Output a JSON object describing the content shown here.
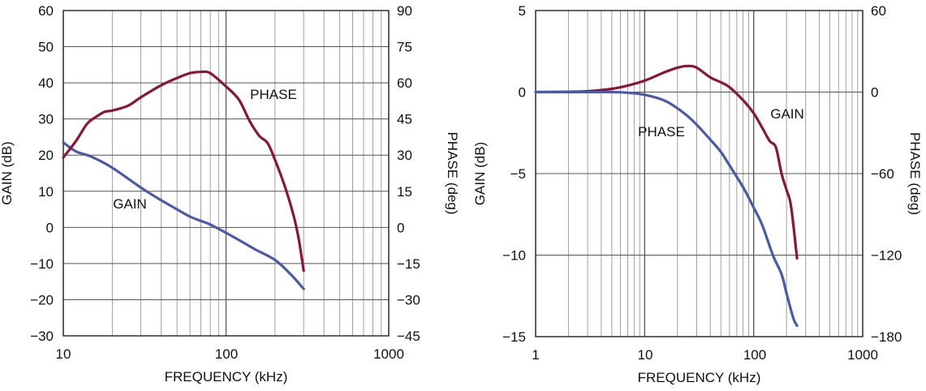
{
  "chart_data": [
    {
      "type": "line",
      "x_scale": "log",
      "xlim": [
        10,
        1000
      ],
      "x_ticks": [
        "10",
        "100",
        "1000"
      ],
      "xlabel": "FREQUENCY (kHz)",
      "ylabel_left": "GAIN (dB)",
      "ylim_left": [
        -30,
        60
      ],
      "y_ticks_left": [
        "−30",
        "−20",
        "−10",
        "0",
        "10",
        "20",
        "30",
        "40",
        "50",
        "60"
      ],
      "ylabel_right": "PHASE (deg)",
      "ylim_right": [
        -45,
        90
      ],
      "y_ticks_right": [
        "−45",
        "−30",
        "−15",
        "0",
        "15",
        "30",
        "45",
        "60",
        "75",
        "90"
      ],
      "grid": true,
      "series": [
        {
          "name": "GAIN",
          "axis": "left",
          "color": "#4a5aa8",
          "x": [
            10,
            12,
            15,
            20,
            30,
            40,
            50,
            60,
            70,
            80,
            100,
            120,
            150,
            200,
            250,
            300
          ],
          "y": [
            23.5,
            21,
            19.5,
            16.5,
            11,
            7.5,
            5,
            3,
            1.8,
            0.8,
            -1.5,
            -3.5,
            -6,
            -9,
            -13,
            -17
          ]
        },
        {
          "name": "PHASE",
          "axis": "right",
          "color": "#8b1538",
          "x": [
            10,
            12,
            14,
            16,
            18,
            20,
            25,
            30,
            40,
            50,
            60,
            70,
            80,
            100,
            120,
            140,
            160,
            180,
            200,
            230,
            260,
            280,
            300
          ],
          "y": [
            29,
            36,
            43,
            46,
            48,
            48.5,
            50.5,
            54,
            59,
            62,
            64,
            64.5,
            64,
            58.5,
            53,
            44,
            38,
            35,
            28,
            17,
            5,
            -5,
            -18
          ]
        }
      ],
      "annotations": [
        {
          "text": "PHASE"
        },
        {
          "text": "GAIN"
        }
      ]
    },
    {
      "type": "line",
      "x_scale": "log",
      "xlim": [
        1,
        1000
      ],
      "x_ticks": [
        "1",
        "10",
        "100",
        "1000"
      ],
      "xlabel": "FREQUENCY (kHz)",
      "ylabel_left": "GAIN (dB)",
      "ylim_left": [
        -15,
        5
      ],
      "y_ticks_left": [
        "−15",
        "−10",
        "−5",
        "0",
        "5"
      ],
      "ylabel_right": "PHASE (deg)",
      "ylim_right": [
        -180,
        60
      ],
      "y_ticks_right": [
        "−180",
        "−120",
        "−60",
        "0",
        "60"
      ],
      "grid": true,
      "series": [
        {
          "name": "GAIN",
          "axis": "left",
          "color": "#8b1538",
          "x": [
            1,
            2,
            3,
            5,
            7,
            10,
            15,
            20,
            25,
            30,
            40,
            50,
            60,
            80,
            100,
            120,
            140,
            160,
            180,
            200,
            220,
            250
          ],
          "y": [
            0,
            0.02,
            0.05,
            0.2,
            0.4,
            0.7,
            1.2,
            1.5,
            1.6,
            1.5,
            0.9,
            0.6,
            0.3,
            -0.5,
            -1.3,
            -2.2,
            -3,
            -3.4,
            -5,
            -6,
            -7,
            -10.2
          ]
        },
        {
          "name": "PHASE",
          "axis": "right",
          "color": "#4a5aa8",
          "x": [
            1,
            2,
            3,
            5,
            7,
            10,
            15,
            20,
            25,
            30,
            40,
            50,
            60,
            80,
            100,
            120,
            150,
            180,
            200,
            230,
            250
          ],
          "y": [
            0,
            0,
            0,
            0,
            -0.5,
            -2,
            -6,
            -12,
            -18,
            -24,
            -35,
            -44,
            -54,
            -70,
            -85,
            -98,
            -120,
            -134,
            -148,
            -166,
            -172
          ]
        }
      ],
      "annotations": [
        {
          "text": "GAIN"
        },
        {
          "text": "PHASE"
        }
      ]
    }
  ]
}
